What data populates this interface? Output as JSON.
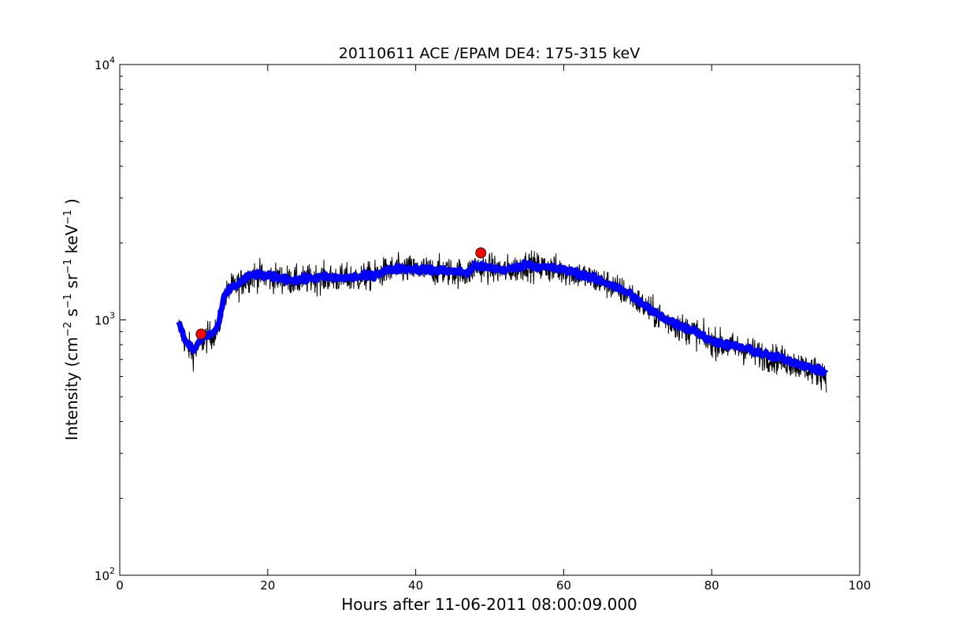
{
  "chart_data": {
    "type": "line",
    "title": "20110611 ACE /EPAM DE4: 175-315 keV",
    "xlabel": "Hours after 11-06-2011 08:00:09.000",
    "ylabel": {
      "prefix": "Intensity (cm",
      "exp1": "−2",
      "part2": " s",
      "exp2": "−1",
      "part3": " sr",
      "exp3": "−1",
      "part4": " keV",
      "exp4": "−1",
      "suffix": " )"
    },
    "xlim": [
      0,
      100
    ],
    "ylim": [
      100,
      10000
    ],
    "yscale": "log",
    "grid": false,
    "x_ticks": [
      {
        "value": 0,
        "label": "0"
      },
      {
        "value": 20,
        "label": "20"
      },
      {
        "value": 40,
        "label": "40"
      },
      {
        "value": 60,
        "label": "60"
      },
      {
        "value": 80,
        "label": "80"
      },
      {
        "value": 100,
        "label": "100"
      }
    ],
    "y_ticks": [
      {
        "value": 100,
        "base": "10",
        "exp": "2"
      },
      {
        "value": 1000,
        "base": "10",
        "exp": "3"
      },
      {
        "value": 10000,
        "base": "10",
        "exp": "4"
      }
    ],
    "series": [
      {
        "style": "raw-noisy",
        "color": "#000000",
        "noise_log10": 0.028,
        "x": [
          8.0,
          8.3,
          9.0,
          10.0,
          11.0,
          12.0,
          13.0,
          13.6,
          14.0,
          15.0,
          16.0,
          17.0,
          18.0,
          19.0,
          20.0,
          21.0,
          22.0,
          23.0,
          24.0,
          25.0,
          26.0,
          28.0,
          30.0,
          32.0,
          34.0,
          36.0,
          38.0,
          40.0,
          42.0,
          44.0,
          46.0,
          47.0,
          47.5,
          48.0,
          49.0,
          50.0,
          52.0,
          54.0,
          55.0,
          56.0,
          58.0,
          60.0,
          62.0,
          64.0,
          66.0,
          68.0,
          69.0,
          70.0,
          72.0,
          74.0,
          76.0,
          78.0,
          79.0,
          80.0,
          82.0,
          84.0,
          86.0,
          88.0,
          90.0,
          92.0,
          94.0,
          95.5
        ],
        "values": [
          940,
          900,
          800,
          740,
          820,
          860,
          900,
          1000,
          1200,
          1330,
          1370,
          1440,
          1500,
          1490,
          1470,
          1460,
          1450,
          1430,
          1420,
          1430,
          1450,
          1460,
          1450,
          1460,
          1480,
          1550,
          1580,
          1570,
          1560,
          1550,
          1530,
          1520,
          1560,
          1620,
          1600,
          1590,
          1560,
          1600,
          1650,
          1620,
          1590,
          1560,
          1510,
          1440,
          1380,
          1290,
          1260,
          1180,
          1070,
          990,
          930,
          890,
          840,
          820,
          790,
          770,
          740,
          710,
          690,
          660,
          630,
          610
        ]
      },
      {
        "style": "smoothed",
        "color": "#0000ff",
        "x": [
          8.0,
          8.3,
          9.0,
          10.0,
          11.0,
          12.0,
          13.0,
          13.6,
          14.0,
          15.0,
          16.0,
          17.0,
          18.0,
          19.0,
          20.0,
          21.0,
          22.0,
          23.0,
          24.0,
          25.0,
          26.0,
          28.0,
          30.0,
          32.0,
          34.0,
          36.0,
          38.0,
          40.0,
          42.0,
          44.0,
          46.0,
          47.0,
          47.5,
          48.0,
          49.0,
          50.0,
          52.0,
          54.0,
          55.0,
          56.0,
          58.0,
          60.0,
          62.0,
          64.0,
          66.0,
          68.0,
          69.0,
          70.0,
          72.0,
          74.0,
          76.0,
          78.0,
          79.0,
          80.0,
          82.0,
          84.0,
          86.0,
          88.0,
          90.0,
          92.0,
          94.0,
          95.5
        ],
        "values": [
          960,
          920,
          810,
          760,
          840,
          870,
          910,
          1020,
          1210,
          1340,
          1380,
          1450,
          1510,
          1500,
          1480,
          1470,
          1460,
          1440,
          1430,
          1440,
          1460,
          1470,
          1460,
          1470,
          1490,
          1560,
          1590,
          1580,
          1570,
          1560,
          1540,
          1530,
          1570,
          1640,
          1610,
          1600,
          1570,
          1610,
          1660,
          1630,
          1600,
          1570,
          1520,
          1450,
          1390,
          1300,
          1270,
          1190,
          1080,
          1000,
          940,
          900,
          850,
          830,
          800,
          780,
          750,
          720,
          700,
          670,
          640,
          620
        ]
      },
      {
        "style": "markers",
        "color": "#ff0000",
        "x": [
          11.0,
          48.8
        ],
        "values": [
          880,
          1830
        ]
      }
    ]
  }
}
